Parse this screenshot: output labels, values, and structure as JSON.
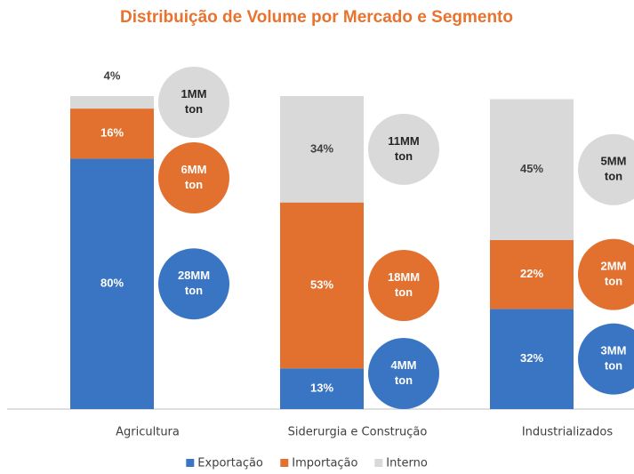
{
  "chart_data": {
    "type": "stacked_bar",
    "title": "Distribuição de Volume por Mercado e Segmento",
    "categories": [
      "Agricultura",
      "Siderurgia e Construção",
      "Industrializados"
    ],
    "ylim": [
      0,
      100
    ],
    "legend": "bottom",
    "series": [
      {
        "name": "Exportação",
        "color": "#3a75c4",
        "values": [
          80,
          13,
          32
        ],
        "value_labels": [
          "80%",
          "13%",
          "32%"
        ],
        "volume_labels": [
          [
            "28MM",
            "ton"
          ],
          [
            "4MM",
            "ton"
          ],
          [
            "3MM",
            "ton"
          ]
        ]
      },
      {
        "name": "Importação",
        "color": "#e2702f",
        "values": [
          16,
          53,
          22
        ],
        "value_labels": [
          "16%",
          "53%",
          "22%"
        ],
        "volume_labels": [
          [
            "6MM",
            "ton"
          ],
          [
            "18MM",
            "ton"
          ],
          [
            "2MM",
            "ton"
          ]
        ]
      },
      {
        "name": "Interno",
        "color": "#d9d9d9",
        "values": [
          4,
          34,
          45
        ],
        "value_labels": [
          "4%",
          "34%",
          "45%"
        ],
        "volume_labels": [
          [
            "1MM",
            "ton"
          ],
          [
            "11MM",
            "ton"
          ],
          [
            "5MM",
            "ton"
          ]
        ]
      }
    ]
  }
}
